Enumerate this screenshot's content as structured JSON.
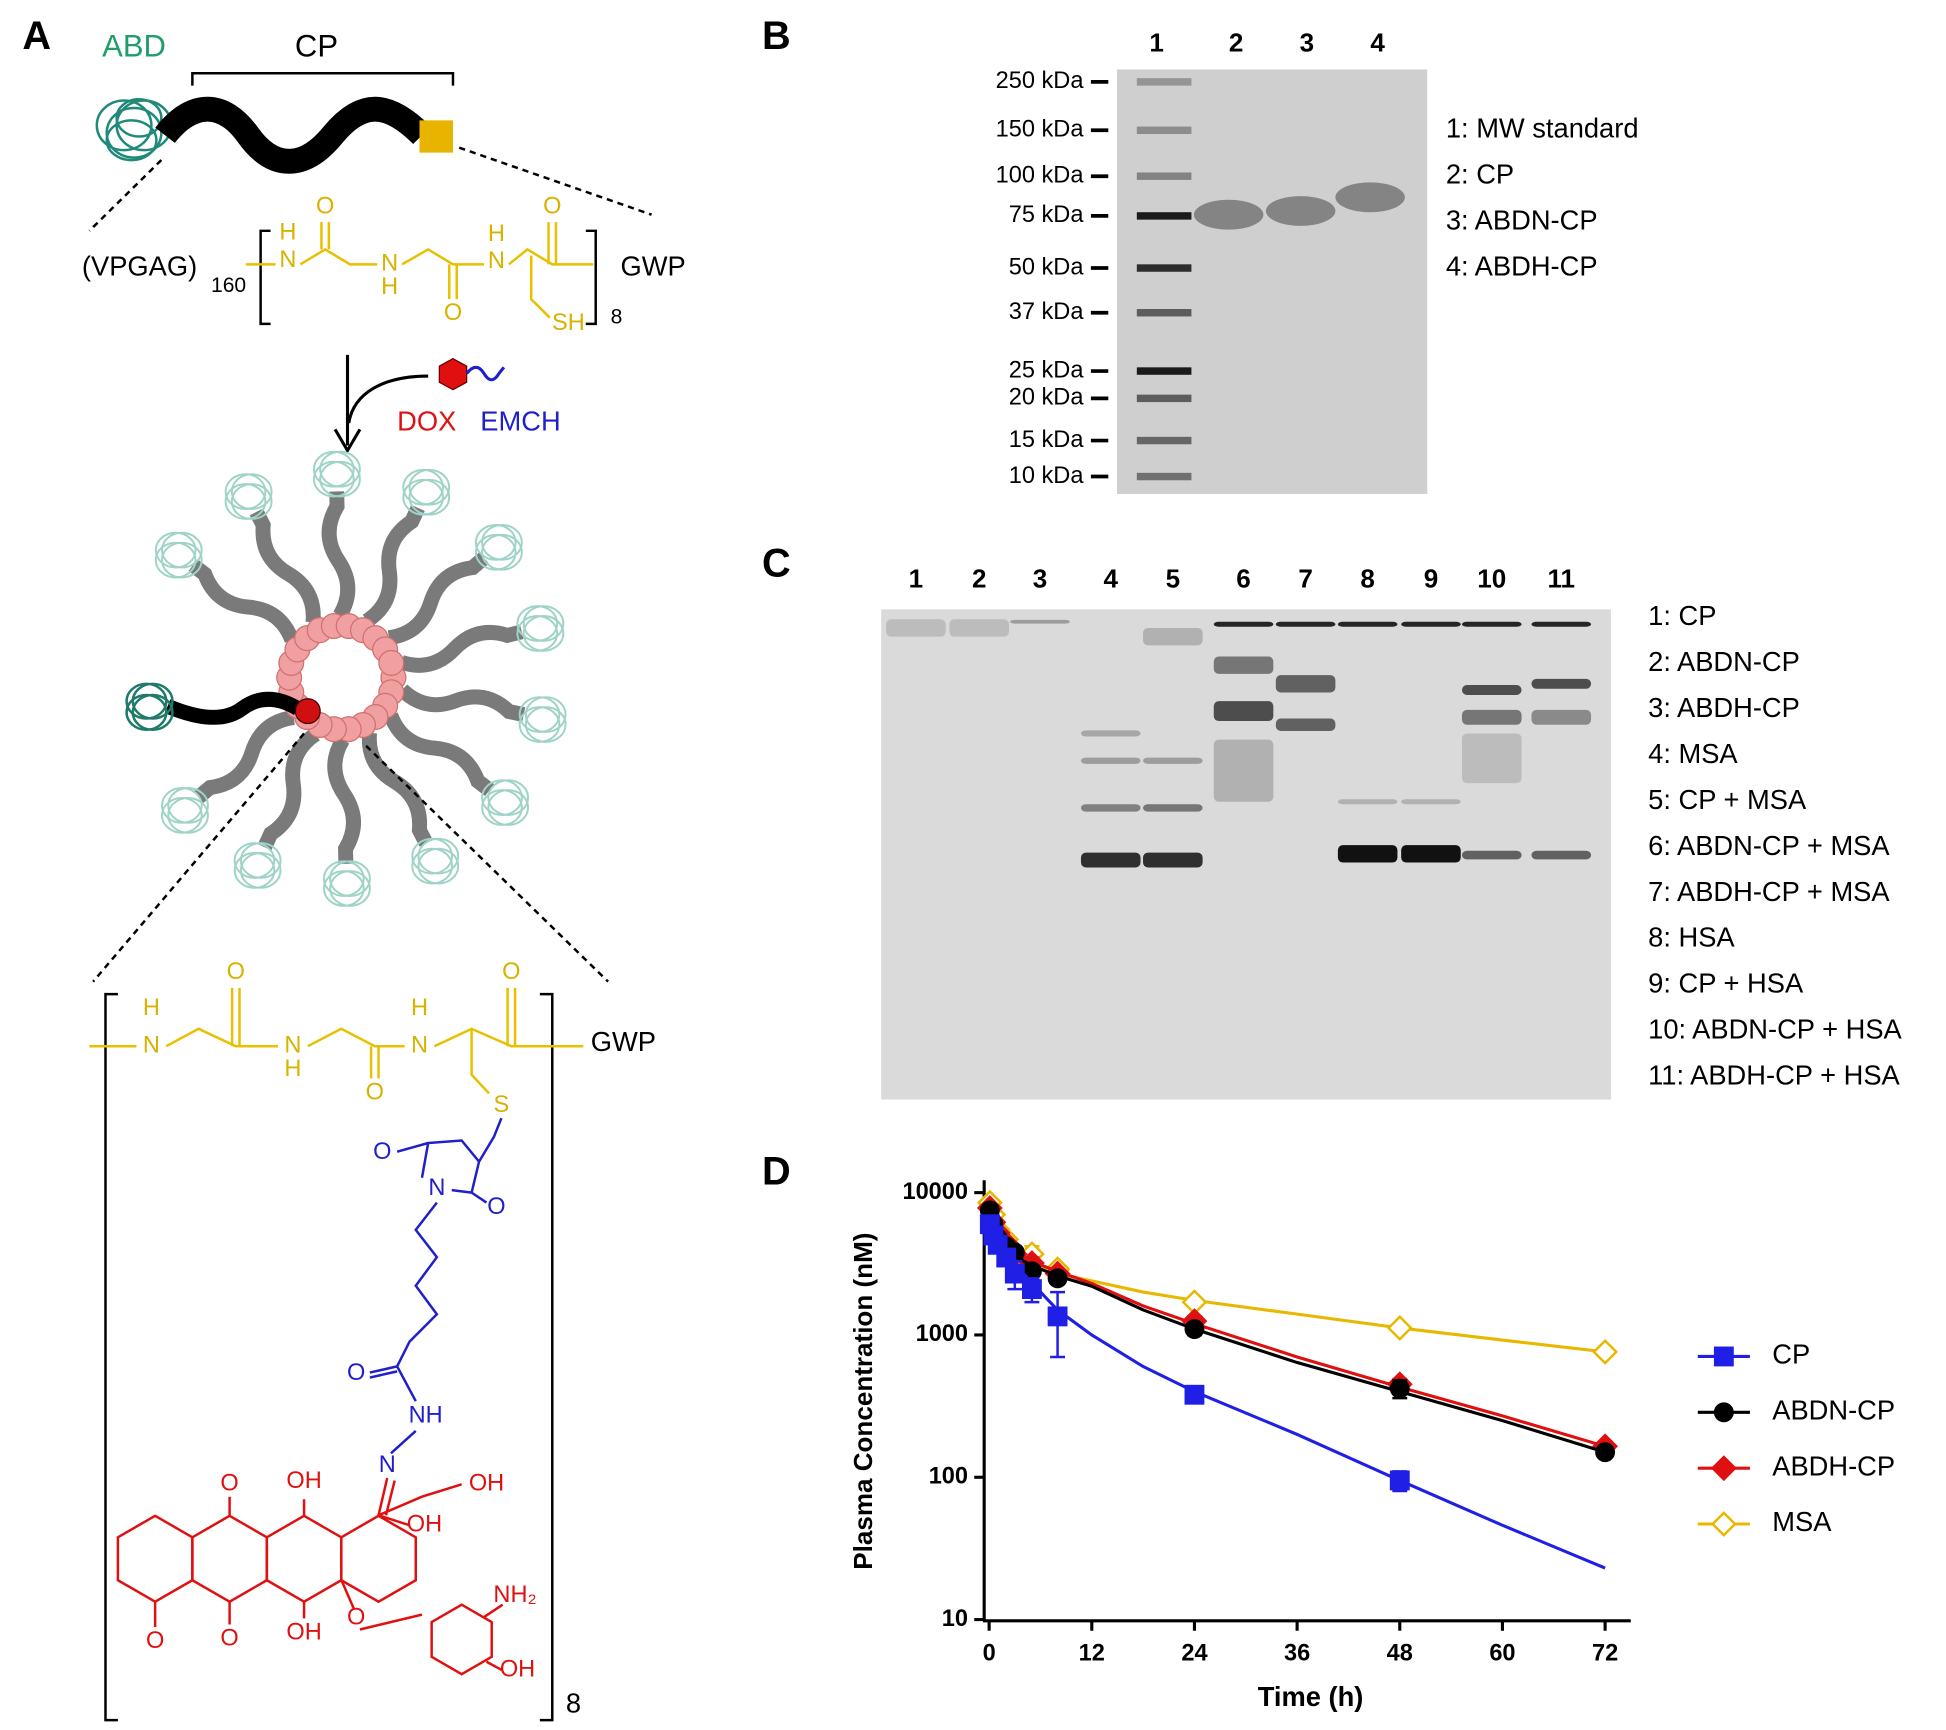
{
  "panel_a": {
    "label": "A",
    "abd": "ABD",
    "cp": "CP",
    "repeat": "(VPGAG)",
    "repeat_count": "160",
    "end_group": "GWP",
    "bracket_count": "8",
    "dox": "DOX",
    "emch": "EMCH",
    "peptide_atoms": [
      "H",
      "N",
      "O",
      "N",
      "H",
      "O",
      "H",
      "N",
      "O",
      "SH"
    ],
    "conjugate_atoms": [
      "H",
      "N",
      "O",
      "N",
      "H",
      "O",
      "H",
      "N",
      "O",
      "S",
      "O",
      "N",
      "O",
      "O",
      "NH",
      "N",
      "OH",
      "OH",
      "OH",
      "O",
      "O",
      "OH",
      "O",
      "NH₂",
      "OH",
      "O"
    ],
    "conjugate_end": "GWP",
    "conjugate_count": "8"
  },
  "panel_b": {
    "label": "B",
    "lanes": [
      "1",
      "2",
      "3",
      "4"
    ],
    "markers": [
      "250 kDa",
      "150 kDa",
      "100 kDa",
      "75 kDa",
      "50 kDa",
      "37 kDa",
      "25 kDa",
      "20 kDa",
      "15 kDa",
      "10 kDa"
    ],
    "legend": [
      "1: MW standard",
      "2: CP",
      "3: ABDN-CP",
      "4: ABDH-CP"
    ]
  },
  "panel_c": {
    "label": "C",
    "lanes": [
      "1",
      "2",
      "3",
      "4",
      "5",
      "6",
      "7",
      "8",
      "9",
      "10",
      "11"
    ],
    "legend": [
      "1: CP",
      "2: ABDN-CP",
      "3: ABDH-CP",
      "4: MSA",
      "5: CP + MSA",
      "6: ABDN-CP + MSA",
      "7: ABDH-CP + MSA",
      "8: HSA",
      "9: CP + HSA",
      "10: ABDN-CP + HSA",
      "11: ABDH-CP + HSA"
    ]
  },
  "panel_d": {
    "label": "D"
  },
  "chart_data": {
    "type": "line",
    "x_label": "Time (h)",
    "y_label": "Plasma Concentration (nM)",
    "x": [
      0.083,
      0.5,
      1,
      2,
      3,
      5,
      8,
      24,
      48,
      72
    ],
    "fit_x": [
      0,
      1,
      2,
      4,
      6,
      8,
      12,
      18,
      24,
      36,
      48,
      60,
      72
    ],
    "series": [
      {
        "name": "CP",
        "color": "#1f1fe6",
        "marker": "square",
        "filled": true,
        "values": [
          6000,
          5000,
          4300,
          3500,
          2700,
          2100,
          1350,
          380,
          95,
          null
        ],
        "errors": [
          600,
          400,
          400,
          400,
          600,
          400,
          650,
          40,
          15,
          null
        ],
        "fit_values": [
          6500,
          4800,
          3900,
          2700,
          2000,
          1500,
          1000,
          600,
          400,
          200,
          95,
          46,
          23
        ]
      },
      {
        "name": "ABDN-CP",
        "color": "#000000",
        "marker": "circle",
        "filled": true,
        "values": [
          7500,
          6000,
          4800,
          4200,
          3800,
          2800,
          2500,
          1100,
          420,
          150
        ],
        "errors": [
          500,
          400,
          300,
          300,
          300,
          200,
          200,
          100,
          60,
          10
        ],
        "fit_values": [
          7500,
          5500,
          4300,
          3300,
          2900,
          2600,
          2200,
          1500,
          1100,
          640,
          400,
          250,
          150
        ]
      },
      {
        "name": "ABDH-CP",
        "color": "#e01010",
        "marker": "diamond",
        "filled": true,
        "values": [
          7800,
          6200,
          5200,
          4400,
          3700,
          3200,
          2700,
          1250,
          450,
          165
        ],
        "errors": [
          500,
          400,
          300,
          300,
          300,
          300,
          200,
          100,
          40,
          10
        ],
        "fit_values": [
          8000,
          6000,
          4600,
          3500,
          3100,
          2800,
          2300,
          1600,
          1200,
          700,
          430,
          270,
          165
        ]
      },
      {
        "name": "MSA",
        "color": "#e8b800",
        "marker": "diamond",
        "filled": false,
        "values": [
          8500,
          7000,
          5500,
          4700,
          3800,
          3700,
          2900,
          1700,
          1120,
          760
        ],
        "errors": [
          500,
          400,
          300,
          300,
          300,
          500,
          200,
          80,
          50,
          30
        ],
        "fit_values": [
          8500,
          6500,
          5000,
          3500,
          3000,
          2700,
          2400,
          2000,
          1750,
          1400,
          1120,
          920,
          760
        ]
      }
    ],
    "xlim": [
      0,
      75
    ],
    "ylim": [
      10,
      10000
    ],
    "xticks": [
      0,
      12,
      24,
      36,
      48,
      60,
      72
    ],
    "yticks": [
      10,
      100,
      1000,
      10000
    ],
    "log_y": true,
    "legend": "right"
  }
}
